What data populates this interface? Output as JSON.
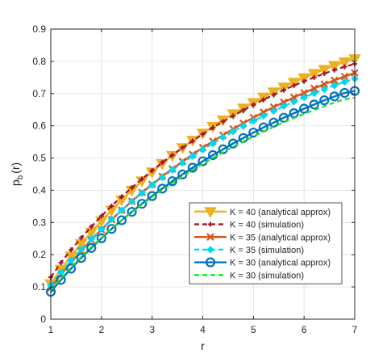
{
  "chart_data": {
    "type": "line",
    "xlabel": "r",
    "ylabel_main": "p",
    "ylabel_sub": "b",
    "ylabel_tail": "(r)",
    "xlim": [
      1,
      7
    ],
    "ylim": [
      0,
      0.9
    ],
    "xticks": [
      1,
      2,
      3,
      4,
      5,
      6,
      7
    ],
    "xtick_labels": [
      "1",
      "2",
      "3",
      "4",
      "5",
      "6",
      "7"
    ],
    "yticks": [
      0,
      0.1,
      0.2,
      0.3,
      0.4,
      0.5,
      0.6,
      0.7,
      0.8,
      0.9
    ],
    "ytick_labels": [
      "0",
      "0.1",
      "0.2",
      "0.3",
      "0.4",
      "0.5",
      "0.6",
      "0.7",
      "0.8",
      "0.9"
    ],
    "grid": true,
    "legend_position": "lower-right",
    "series": [
      {
        "name": "K = 40 (analytical approx)",
        "color": "#EDB120",
        "line": "solid",
        "marker": "triangle-down",
        "x": [
          1.0,
          1.2,
          1.4,
          1.6,
          1.8,
          2.0,
          2.2,
          2.4,
          2.6,
          2.8,
          3.0,
          3.2,
          3.4,
          3.6,
          3.8,
          4.0,
          4.2,
          4.4,
          4.6,
          4.8,
          5.0,
          5.2,
          5.4,
          5.6,
          5.8,
          6.0,
          6.2,
          6.4,
          6.6,
          6.8,
          7.0
        ],
        "y": [
          0.11,
          0.155,
          0.196,
          0.234,
          0.27,
          0.305,
          0.338,
          0.37,
          0.4,
          0.429,
          0.457,
          0.483,
          0.508,
          0.532,
          0.555,
          0.577,
          0.598,
          0.618,
          0.637,
          0.655,
          0.672,
          0.689,
          0.705,
          0.72,
          0.735,
          0.749,
          0.762,
          0.775,
          0.787,
          0.798,
          0.808
        ]
      },
      {
        "name": "K = 40 (simulation)",
        "color": "#A2142F",
        "line": "dashed",
        "marker": "plus",
        "x": [
          1.0,
          1.2,
          1.4,
          1.6,
          1.8,
          2.0,
          2.2,
          2.4,
          2.6,
          2.8,
          3.0,
          3.2,
          3.4,
          3.6,
          3.8,
          4.0,
          4.2,
          4.4,
          4.6,
          4.8,
          5.0,
          5.2,
          5.4,
          5.6,
          5.8,
          6.0,
          6.2,
          6.4,
          6.6,
          6.8,
          7.0
        ],
        "y": [
          0.13,
          0.175,
          0.215,
          0.252,
          0.287,
          0.32,
          0.351,
          0.38,
          0.408,
          0.435,
          0.461,
          0.486,
          0.509,
          0.532,
          0.553,
          0.574,
          0.594,
          0.613,
          0.631,
          0.648,
          0.665,
          0.681,
          0.696,
          0.711,
          0.725,
          0.738,
          0.75,
          0.762,
          0.773,
          0.783,
          0.792
        ]
      },
      {
        "name": "K = 35 (analytical approx)",
        "color": "#D95319",
        "line": "solid",
        "marker": "x",
        "x": [
          1.0,
          1.2,
          1.4,
          1.6,
          1.8,
          2.0,
          2.2,
          2.4,
          2.6,
          2.8,
          3.0,
          3.2,
          3.4,
          3.6,
          3.8,
          4.0,
          4.2,
          4.4,
          4.6,
          4.8,
          5.0,
          5.2,
          5.4,
          5.6,
          5.8,
          6.0,
          6.2,
          6.4,
          6.6,
          6.8,
          7.0
        ],
        "y": [
          0.097,
          0.138,
          0.176,
          0.212,
          0.246,
          0.278,
          0.309,
          0.338,
          0.366,
          0.393,
          0.418,
          0.443,
          0.466,
          0.489,
          0.511,
          0.532,
          0.552,
          0.571,
          0.59,
          0.608,
          0.625,
          0.642,
          0.658,
          0.673,
          0.688,
          0.702,
          0.716,
          0.729,
          0.741,
          0.753,
          0.764
        ]
      },
      {
        "name": "K = 35 (simulation)",
        "color": "#00D8F0",
        "line": "dashed",
        "marker": "diamond",
        "x": [
          1.0,
          1.2,
          1.4,
          1.6,
          1.8,
          2.0,
          2.2,
          2.4,
          2.6,
          2.8,
          3.0,
          3.2,
          3.4,
          3.6,
          3.8,
          4.0,
          4.2,
          4.4,
          4.6,
          4.8,
          5.0,
          5.2,
          5.4,
          5.6,
          5.8,
          6.0,
          6.2,
          6.4,
          6.6,
          6.8,
          7.0
        ],
        "y": [
          0.105,
          0.145,
          0.182,
          0.216,
          0.249,
          0.28,
          0.31,
          0.338,
          0.365,
          0.391,
          0.416,
          0.44,
          0.463,
          0.485,
          0.506,
          0.526,
          0.545,
          0.564,
          0.582,
          0.599,
          0.615,
          0.631,
          0.646,
          0.661,
          0.675,
          0.688,
          0.701,
          0.713,
          0.725,
          0.736,
          0.746
        ]
      },
      {
        "name": "K = 30 (analytical approx)",
        "color": "#0072BD",
        "line": "solid",
        "marker": "circle",
        "x": [
          1.0,
          1.2,
          1.4,
          1.6,
          1.8,
          2.0,
          2.2,
          2.4,
          2.6,
          2.8,
          3.0,
          3.2,
          3.4,
          3.6,
          3.8,
          4.0,
          4.2,
          4.4,
          4.6,
          4.8,
          5.0,
          5.2,
          5.4,
          5.6,
          5.8,
          6.0,
          6.2,
          6.4,
          6.6,
          6.8,
          7.0
        ],
        "y": [
          0.085,
          0.122,
          0.157,
          0.19,
          0.221,
          0.251,
          0.28,
          0.307,
          0.333,
          0.358,
          0.382,
          0.405,
          0.428,
          0.449,
          0.47,
          0.49,
          0.509,
          0.527,
          0.545,
          0.562,
          0.579,
          0.595,
          0.61,
          0.625,
          0.639,
          0.653,
          0.666,
          0.679,
          0.691,
          0.702,
          0.708
        ]
      },
      {
        "name": "K = 30 (simulation)",
        "color": "#22DD22",
        "line": "dashed",
        "marker": "none",
        "x": [
          1.0,
          1.2,
          1.4,
          1.6,
          1.8,
          2.0,
          2.2,
          2.4,
          2.6,
          2.8,
          3.0,
          3.2,
          3.4,
          3.6,
          3.8,
          4.0,
          4.2,
          4.4,
          4.6,
          4.8,
          5.0,
          5.2,
          5.4,
          5.6,
          5.8,
          6.0,
          6.2,
          6.4,
          6.6,
          6.8,
          7.0
        ],
        "y": [
          0.09,
          0.127,
          0.161,
          0.193,
          0.224,
          0.253,
          0.281,
          0.307,
          0.332,
          0.356,
          0.379,
          0.401,
          0.422,
          0.443,
          0.463,
          0.482,
          0.5,
          0.518,
          0.535,
          0.551,
          0.567,
          0.582,
          0.597,
          0.611,
          0.624,
          0.637,
          0.649,
          0.661,
          0.672,
          0.682,
          0.687
        ]
      }
    ]
  }
}
